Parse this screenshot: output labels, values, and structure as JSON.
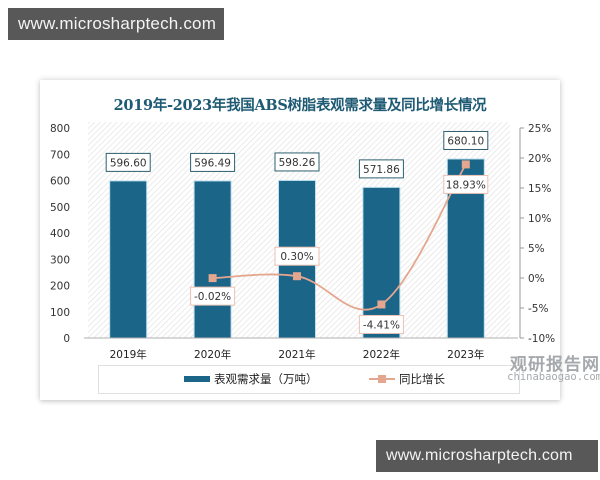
{
  "watermarks": {
    "top": "www.microsharptech.com",
    "bottom": "www.microsharptech.com"
  },
  "brand": {
    "name_cn": "观研报告网",
    "domain": "chinabaogao.com"
  },
  "colors": {
    "bar": "#1a6588",
    "line": "#e4a68e",
    "title": "#1e5a73"
  },
  "chart_data": {
    "type": "bar",
    "title": "2019年-2023年我国ABS树脂表观需求量及同比增长情况",
    "categories": [
      "2019年",
      "2020年",
      "2021年",
      "2022年",
      "2023年"
    ],
    "series": [
      {
        "name": "表观需求量（万吨）",
        "type": "bar",
        "axis": "left",
        "values": [
          596.6,
          596.49,
          598.26,
          571.86,
          680.1
        ],
        "labels": [
          "596.60",
          "596.49",
          "598.26",
          "571.86",
          "680.10"
        ]
      },
      {
        "name": "同比增长",
        "type": "line",
        "axis": "right",
        "values": [
          null,
          -0.02,
          0.3,
          -4.41,
          18.93
        ],
        "labels": [
          "",
          "-0.02%",
          "0.30%",
          "-4.41%",
          "18.93%"
        ]
      }
    ],
    "left_axis": {
      "ylim": [
        0,
        800
      ],
      "ticks": [
        "0",
        "100",
        "200",
        "300",
        "400",
        "500",
        "600",
        "700",
        "800"
      ]
    },
    "right_axis": {
      "ylim": [
        -10,
        25
      ],
      "ticks": [
        "-10%",
        "-5%",
        "0%",
        "5%",
        "10%",
        "15%",
        "20%",
        "25%"
      ]
    },
    "xlabel": "",
    "ylabel": "",
    "grid": false,
    "legend": {
      "position": "bottom",
      "entries": [
        "表观需求量（万吨）",
        "同比增长"
      ]
    }
  }
}
